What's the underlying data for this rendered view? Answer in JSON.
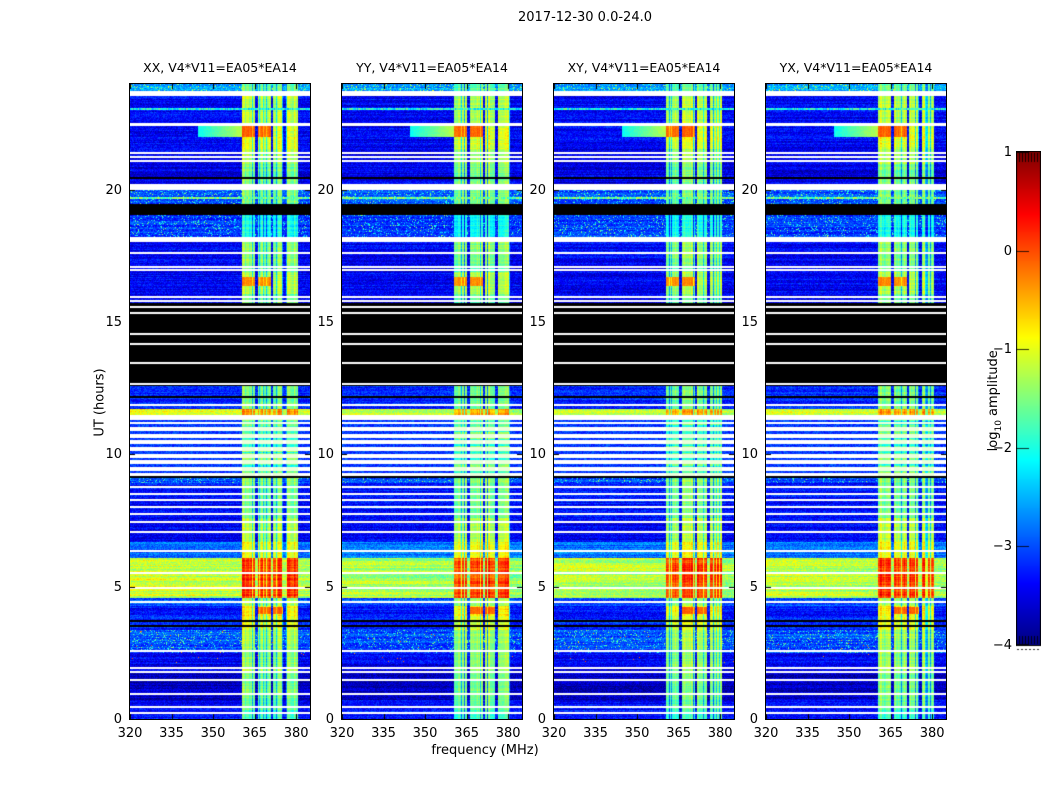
{
  "figure": {
    "title": "2017-12-30 0.0-24.0",
    "xlabel": "frequency (MHz)",
    "ylabel": "UT (hours)"
  },
  "panels": [
    {
      "label": "XX, V4*V11=EA05*EA14",
      "seed": 11,
      "gain": 1.12
    },
    {
      "label": "YY, V4*V11=EA05*EA14",
      "seed": 23,
      "gain": 0.92
    },
    {
      "label": "XY, V4*V11=EA05*EA14",
      "seed": 37,
      "gain": 1.0
    },
    {
      "label": "YX, V4*V11=EA05*EA14",
      "seed": 51,
      "gain": 1.05
    }
  ],
  "axes": {
    "x_tick_labels": [
      "320",
      "335",
      "350",
      "365",
      "380"
    ],
    "x_tick_values": [
      320,
      335,
      350,
      365,
      380
    ],
    "y_tick_labels": [
      "0",
      "5",
      "10",
      "15",
      "20"
    ],
    "y_tick_values": [
      0,
      5,
      10,
      15,
      20
    ]
  },
  "colorbar": {
    "label_prefix": "log",
    "label_sub": "10",
    "label_suffix": " amplitude",
    "tick_labels": [
      "1",
      "0",
      "−1",
      "−2",
      "−3",
      "−4"
    ],
    "tick_values": [
      1,
      0,
      -1,
      -2,
      -3,
      -4
    ],
    "colormap": "jet",
    "over_color": "#800000",
    "under_color": "#000080"
  },
  "chart_data": {
    "type": "heatmap",
    "title": "2017-12-30 0.0-24.0",
    "xlabel": "frequency (MHz)",
    "ylabel": "UT (hours)",
    "value_label": "log10 amplitude",
    "x_range": [
      320,
      385
    ],
    "y_range": [
      0,
      24
    ],
    "value_range": [
      -4,
      1
    ],
    "panel_labels": [
      "XX, V4*V11=EA05*EA14",
      "YY, V4*V11=EA05*EA14",
      "XY, V4*V11=EA05*EA14",
      "YX, V4*V11=EA05*EA14"
    ],
    "rfi_strips_mhz": [
      [
        360.5,
        365.3
      ],
      [
        366.3,
        370.8
      ],
      [
        371.8,
        375.3
      ],
      [
        376.3,
        380.6
      ]
    ],
    "time_bands": [
      {
        "t0": 23.75,
        "t1": 24.0,
        "bg": "speckle",
        "base": -2.6,
        "rfi": -1.6
      },
      {
        "t0": 23.55,
        "t1": 23.75,
        "bg": "white"
      },
      {
        "t0": 22.55,
        "t1": 23.55,
        "bg": "noise",
        "base": -3.4,
        "rfi": -1.2,
        "lines": [
          {
            "t": 23.1,
            "c": "speck"
          }
        ]
      },
      {
        "t0": 22.45,
        "t1": 22.55,
        "bg": "white"
      },
      {
        "t0": 21.55,
        "t1": 22.45,
        "bg": "noise",
        "base": -3.4,
        "rfi": -1.0,
        "blob": {
          "t": 22.25,
          "h": 0.22,
          "v": -0.1,
          "strips": [
            0,
            1
          ],
          "smear": true
        }
      },
      {
        "t0": 21.0,
        "t1": 21.55,
        "bg": "noise",
        "base": -3.5,
        "rfi": -1.3,
        "lines": [
          {
            "t": 21.12,
            "c": "white"
          },
          {
            "t": 21.28,
            "c": "white"
          },
          {
            "t": 21.44,
            "c": "white"
          }
        ]
      },
      {
        "t0": 20.25,
        "t1": 21.0,
        "bg": "noise",
        "base": -3.5,
        "rfi": -1.5,
        "lines": [
          {
            "t": 20.5,
            "c": "black"
          }
        ]
      },
      {
        "t0": 20.0,
        "t1": 20.25,
        "bg": "white"
      },
      {
        "t0": 19.5,
        "t1": 20.0,
        "bg": "speckle",
        "base": -3.0,
        "rfi": -1.5,
        "lines": [
          {
            "t": 19.72,
            "c": "cyan"
          }
        ]
      },
      {
        "t0": 19.05,
        "t1": 19.5,
        "bg": "black"
      },
      {
        "t0": 18.25,
        "t1": 19.05,
        "bg": "speckle",
        "base": -3.1,
        "rfi": -2.0
      },
      {
        "t0": 18.05,
        "t1": 18.25,
        "bg": "white"
      },
      {
        "t0": 17.2,
        "t1": 18.05,
        "bg": "noise",
        "base": -3.4,
        "rfi": -1.4,
        "lines": [
          {
            "t": 17.65,
            "c": "white"
          }
        ]
      },
      {
        "t0": 16.9,
        "t1": 17.2,
        "bg": "noise",
        "base": -3.5,
        "rfi": -1.6,
        "lines": [
          {
            "t": 17.0,
            "c": "white"
          },
          {
            "t": 17.12,
            "c": "white"
          }
        ]
      },
      {
        "t0": 16.1,
        "t1": 16.9,
        "bg": "noise",
        "base": -3.4,
        "rfi": -1.2,
        "blob": {
          "t": 16.55,
          "h": 0.18,
          "v": -0.3,
          "strips": [
            0,
            1
          ],
          "smear": false
        }
      },
      {
        "t0": 15.75,
        "t1": 16.1,
        "bg": "noise",
        "base": -3.5,
        "rfi": -1.6,
        "lines": [
          {
            "t": 15.85,
            "c": "white"
          },
          {
            "t": 16.0,
            "c": "white"
          }
        ]
      },
      {
        "t0": 12.6,
        "t1": 15.75,
        "bg": "black",
        "lines": [
          {
            "t": 15.62,
            "c": "white"
          },
          {
            "t": 15.38,
            "c": "white"
          },
          {
            "t": 14.6,
            "c": "white"
          },
          {
            "t": 14.22,
            "c": "white"
          },
          {
            "t": 13.5,
            "c": "white"
          },
          {
            "t": 12.7,
            "c": "white"
          }
        ]
      },
      {
        "t0": 11.75,
        "t1": 12.6,
        "bg": "noise",
        "base": -3.2,
        "rfi": -1.5,
        "lines": [
          {
            "t": 12.2,
            "c": "black"
          },
          {
            "t": 11.92,
            "c": "white"
          }
        ]
      },
      {
        "t0": 11.5,
        "t1": 11.75,
        "bg": "bright",
        "base": -1.2,
        "rfi": -0.4
      },
      {
        "t0": 11.35,
        "t1": 11.5,
        "bg": "white"
      },
      {
        "t0": 9.2,
        "t1": 11.35,
        "bg": "whitebg",
        "rfi": -1.7,
        "lineTs": [
          9.35,
          9.6,
          9.85,
          10.1,
          10.35,
          10.6,
          10.85,
          11.1,
          11.28
        ]
      },
      {
        "t0": 8.95,
        "t1": 9.2,
        "bg": "speckle",
        "base": -3.0,
        "rfi": -1.4,
        "lines": [
          {
            "t": 9.17,
            "c": "black"
          }
        ]
      },
      {
        "t0": 7.6,
        "t1": 8.95,
        "bg": "noise",
        "base": -3.3,
        "rfi": -1.5,
        "lines": [
          {
            "t": 8.8,
            "c": "white"
          },
          {
            "t": 8.55,
            "c": "white"
          },
          {
            "t": 8.3,
            "c": "white"
          },
          {
            "t": 8.05,
            "c": "white"
          },
          {
            "t": 7.8,
            "c": "white"
          }
        ]
      },
      {
        "t0": 6.7,
        "t1": 7.6,
        "bg": "noise",
        "base": -3.4,
        "rfi": -1.2,
        "lines": [
          {
            "t": 7.5,
            "c": "white"
          },
          {
            "t": 7.1,
            "c": "white"
          }
        ]
      },
      {
        "t0": 6.1,
        "t1": 6.7,
        "bg": "noise",
        "base": -2.8,
        "rfi": -0.9,
        "lines": [
          {
            "t": 6.4,
            "c": "white"
          }
        ]
      },
      {
        "t0": 4.6,
        "t1": 6.1,
        "bg": "bright",
        "base": -1.3,
        "rfi": 0.1,
        "rowvar": 0.55,
        "lines": [
          {
            "t": 5.55,
            "c": "white"
          },
          {
            "t": 5.0,
            "c": "white"
          }
        ]
      },
      {
        "t0": 4.3,
        "t1": 4.6,
        "bg": "noise",
        "base": -3.0,
        "rfi": -1.3,
        "lines": [
          {
            "t": 4.45,
            "c": "white"
          }
        ]
      },
      {
        "t0": 3.9,
        "t1": 4.3,
        "bg": "noise",
        "base": -3.3,
        "rfi": -0.8,
        "blob": {
          "t": 4.12,
          "h": 0.12,
          "v": -0.1,
          "strips": [
            1,
            2
          ],
          "smear": false
        }
      },
      {
        "t0": 3.4,
        "t1": 3.9,
        "bg": "noise",
        "base": -3.2,
        "rfi": -1.0,
        "lines": [
          {
            "t": 3.75,
            "c": "black"
          },
          {
            "t": 3.55,
            "c": "black"
          }
        ]
      },
      {
        "t0": 2.5,
        "t1": 3.4,
        "bg": "speckle",
        "base": -3.0,
        "rfi": -1.3,
        "dots": true,
        "lines": [
          {
            "t": 2.62,
            "c": "white"
          }
        ]
      },
      {
        "t0": 2.1,
        "t1": 2.5,
        "bg": "noise",
        "base": -3.4,
        "rfi": -1.4,
        "dots": true
      },
      {
        "t0": 1.75,
        "t1": 2.1,
        "bg": "noise",
        "base": -3.5,
        "rfi": -1.3,
        "lines": [
          {
            "t": 1.95,
            "c": "white"
          },
          {
            "t": 1.82,
            "c": "white"
          }
        ]
      },
      {
        "t0": 0.75,
        "t1": 1.75,
        "bg": "dknoise",
        "base": -3.7,
        "rfi": -1.5,
        "lines": [
          {
            "t": 1.5,
            "c": "white"
          },
          {
            "t": 1.0,
            "c": "white"
          }
        ]
      },
      {
        "t0": 0.35,
        "t1": 0.75,
        "bg": "noise",
        "base": -3.4,
        "rfi": -1.6,
        "lines": [
          {
            "t": 0.5,
            "c": "white"
          }
        ]
      },
      {
        "t0": 0.0,
        "t1": 0.35,
        "bg": "noise",
        "base": -3.3,
        "rfi": -1.8,
        "lines": [
          {
            "t": 0.25,
            "c": "white"
          }
        ]
      }
    ]
  }
}
